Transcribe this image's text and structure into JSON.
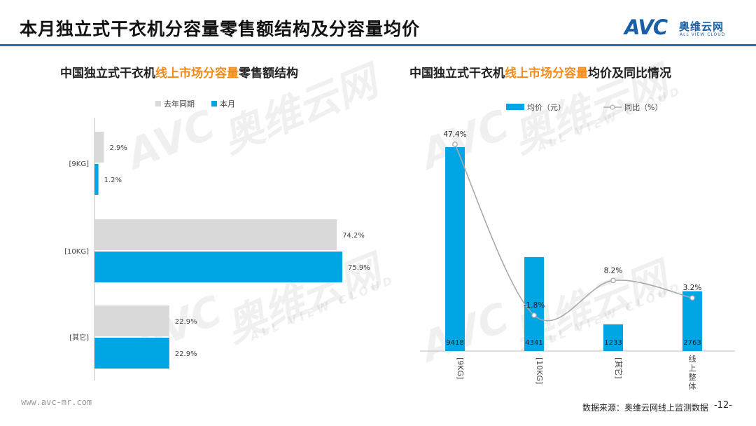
{
  "page": {
    "title": "本月独立式干衣机分容量零售额结构及分容量均价",
    "logo_mark": "AVC",
    "logo_cn": "奥维云网",
    "logo_en": "ALL VIEW CLOUD",
    "footer_url": "www.avc-mr.com",
    "footer_source": "数据来源：奥维云网线上监测数据",
    "page_number": "-12-",
    "watermark_mark": "AVC",
    "watermark_cn": "奥维云网",
    "watermark_en": "ALL VIEW CLOUD"
  },
  "left_chart": {
    "title_pre": "中国独立式干衣机",
    "title_hl": "线上市场分容量",
    "title_post": "零售额结构"
  },
  "right_chart": {
    "title_pre": "中国独立式干衣机",
    "title_hl": "线上市场分容量",
    "title_post": "均价及同比情况"
  },
  "chart_data": [
    {
      "type": "bar",
      "orientation": "horizontal",
      "categories": [
        "[9KG]",
        "[10KG]",
        "[其它]"
      ],
      "series": [
        {
          "name": "去年同期",
          "values": [
            2.9,
            74.2,
            22.9
          ],
          "color": "#d9d9d9"
        },
        {
          "name": "本月",
          "values": [
            1.2,
            75.9,
            22.9
          ],
          "color": "#00a5e3"
        }
      ],
      "unit": "%",
      "legend_position": "top",
      "grid": false
    },
    {
      "type": "bar+line",
      "categories": [
        "[9KG]",
        "[10KG]",
        "[其它]",
        "线上整体"
      ],
      "bars": {
        "name": "均价（元）",
        "values": [
          9418,
          4341,
          1233,
          2763
        ],
        "color": "#00a5e3"
      },
      "line": {
        "name": "同比（%）",
        "values": [
          47.4,
          -1.8,
          8.2,
          3.2
        ],
        "color": "#aaaaaa"
      },
      "legend_position": "top",
      "grid": false
    }
  ],
  "colors": {
    "accent": "#1f6fb2",
    "highlight": "#f08c1e",
    "bar_blue": "#00a5e3",
    "bar_gray": "#d9d9d9"
  }
}
